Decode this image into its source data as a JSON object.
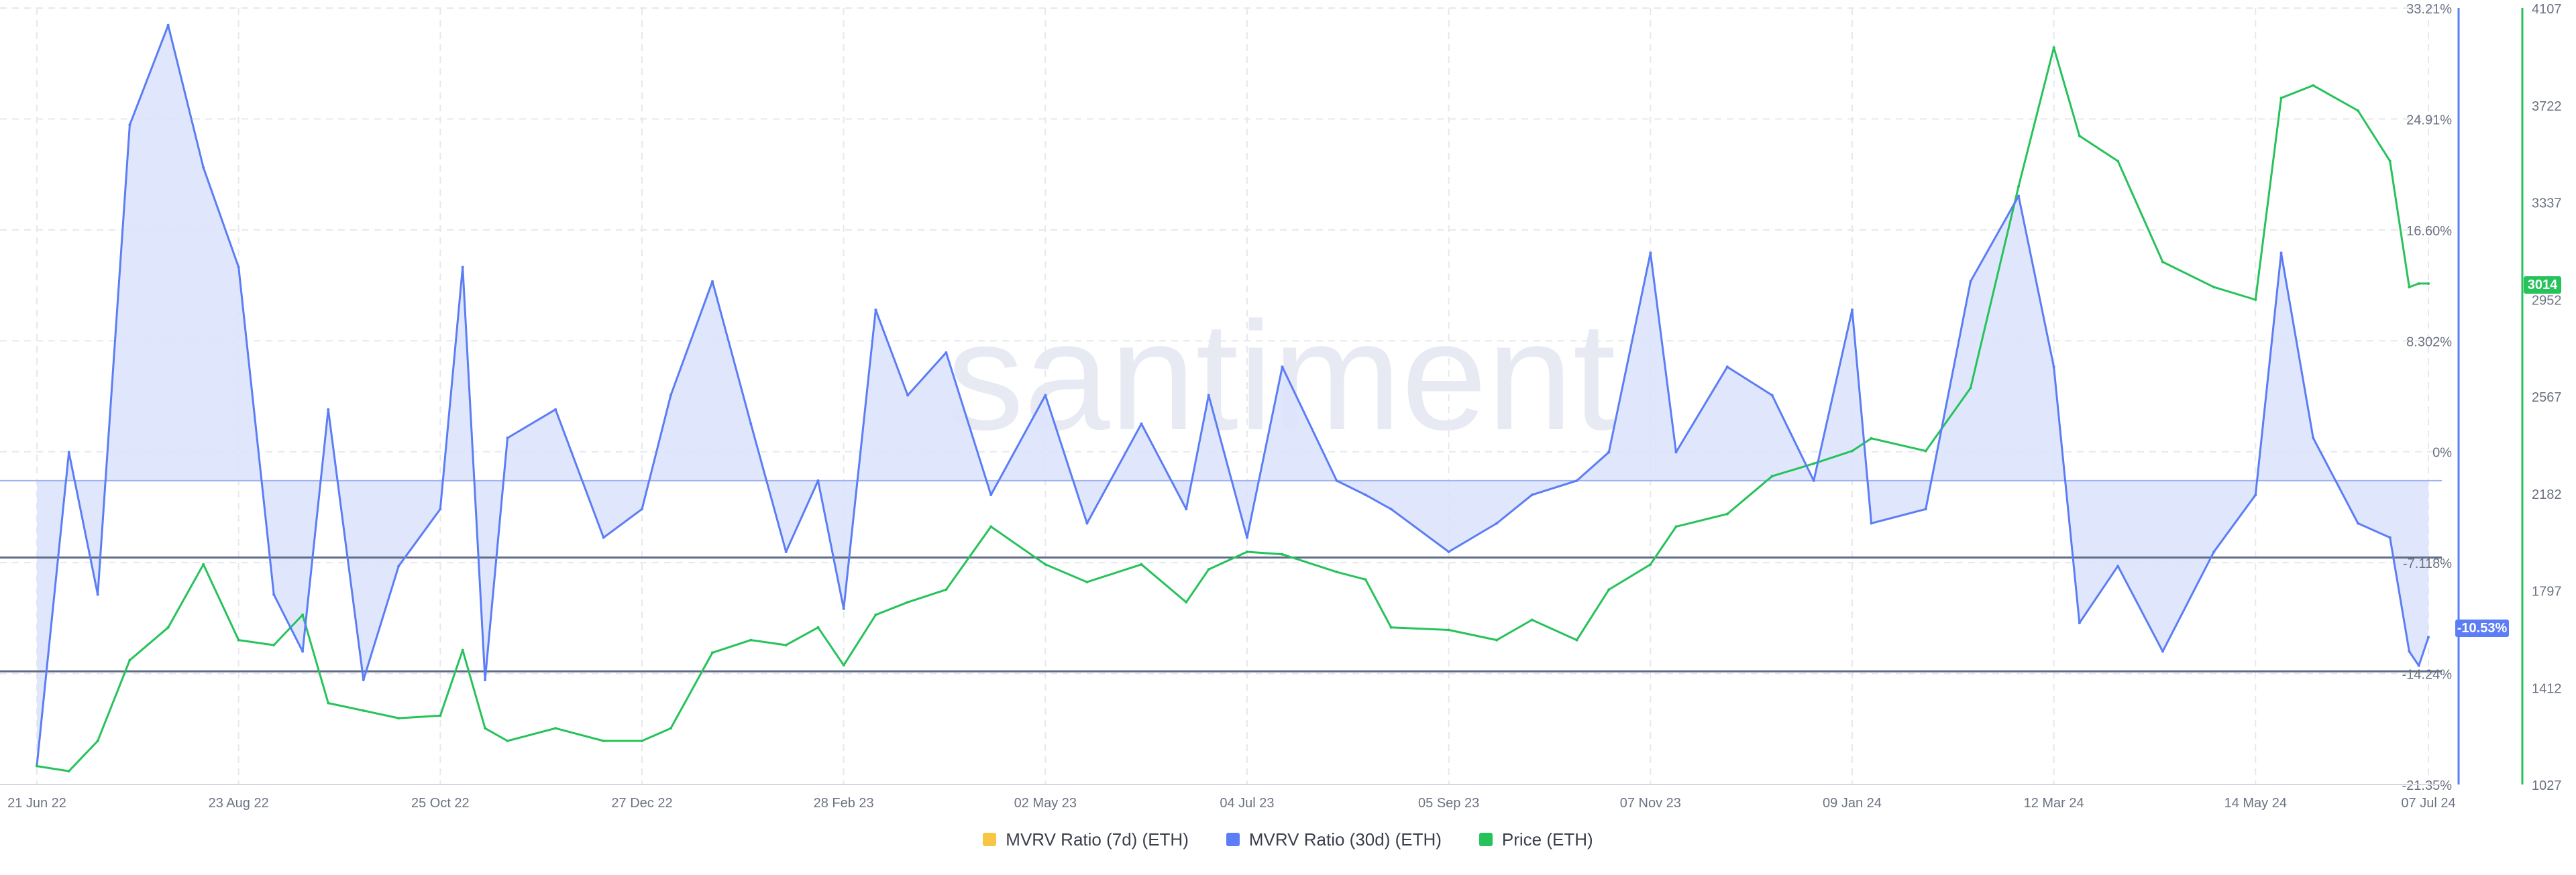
{
  "watermark": "santiment",
  "legend": [
    {
      "label": "MVRV Ratio (7d) (ETH)",
      "color": "#f7c744"
    },
    {
      "label": "MVRV Ratio (30d) (ETH)",
      "color": "#5b7df5"
    },
    {
      "label": "Price (ETH)",
      "color": "#26c25a"
    }
  ],
  "badges": {
    "price": "3014",
    "mvrv": "-10.53%"
  },
  "colors": {
    "mvrv": "#5b7df5",
    "mvrv_fill": "#dbe3fb",
    "price": "#26c25a",
    "grid": "#e6e8ee",
    "hline": "#5f6c88"
  },
  "chart_data": {
    "type": "line",
    "x_ticks": [
      "21 Jun 22",
      "23 Aug 22",
      "25 Oct 22",
      "27 Dec 22",
      "28 Feb 23",
      "02 May 23",
      "04 Jul 23",
      "05 Sep 23",
      "07 Nov 23",
      "09 Jan 24",
      "12 Mar 24",
      "14 May 24",
      "07 Jul 24"
    ],
    "y_left_ticks": [
      "33.21%",
      "24.91%",
      "16.60%",
      "8.302%",
      "0%",
      "-7.118%",
      "-14.24%",
      "-21.35%"
    ],
    "y_left_range": [
      -21.35,
      33.21
    ],
    "y_right_ticks": [
      "4107",
      "3722",
      "3337",
      "2952",
      "2567",
      "2182",
      "1797",
      "1412",
      "1027"
    ],
    "y_right_range": [
      1027,
      4107
    ],
    "horizontal_lines": [
      0,
      -5.4,
      -13.4
    ],
    "series": [
      {
        "name": "MVRV Ratio (30d) (ETH)",
        "axis": "left",
        "x": [
          "21 Jun 22",
          "01 Jul 22",
          "10 Jul 22",
          "20 Jul 22",
          "01 Aug 22",
          "12 Aug 22",
          "23 Aug 22",
          "03 Sep 22",
          "12 Sep 22",
          "20 Sep 22",
          "01 Oct 22",
          "12 Oct 22",
          "25 Oct 22",
          "01 Nov 22",
          "08 Nov 22",
          "15 Nov 22",
          "30 Nov 22",
          "15 Dec 22",
          "27 Dec 22",
          "05 Jan 23",
          "18 Jan 23",
          "30 Jan 23",
          "10 Feb 23",
          "20 Feb 23",
          "28 Feb 23",
          "10 Mar 23",
          "20 Mar 23",
          "01 Apr 23",
          "15 Apr 23",
          "02 May 23",
          "15 May 23",
          "01 Jun 23",
          "15 Jun 23",
          "22 Jun 23",
          "04 Jul 23",
          "15 Jul 23",
          "01 Aug 23",
          "10 Aug 23",
          "18 Aug 23",
          "05 Sep 23",
          "20 Sep 23",
          "01 Oct 23",
          "15 Oct 23",
          "25 Oct 23",
          "07 Nov 23",
          "15 Nov 23",
          "01 Dec 23",
          "15 Dec 23",
          "28 Dec 23",
          "09 Jan 24",
          "15 Jan 24",
          "01 Feb 24",
          "15 Feb 24",
          "01 Mar 24",
          "12 Mar 24",
          "20 Mar 24",
          "01 Apr 24",
          "15 Apr 24",
          "01 May 24",
          "14 May 24",
          "22 May 24",
          "01 Jun 24",
          "15 Jun 24",
          "25 Jun 24",
          "01 Jul 24",
          "04 Jul 24",
          "07 Jul 24"
        ],
        "values": [
          -20,
          2,
          -8,
          25,
          32,
          22,
          15,
          -8,
          -12,
          5,
          -14,
          -6,
          -2,
          15,
          -14,
          3,
          5,
          -4,
          -2,
          6,
          14,
          4,
          -5,
          0,
          -9,
          12,
          6,
          9,
          -1,
          6,
          -3,
          4,
          -2,
          6,
          -4,
          8,
          0,
          -1,
          -2,
          -5,
          -3,
          -1,
          0,
          2,
          16,
          2,
          8,
          6,
          0,
          12,
          -3,
          -2,
          14,
          20,
          8,
          -10,
          -6,
          -12,
          -5,
          -1,
          16,
          3,
          -3,
          -4,
          -12,
          -13,
          -11
        ]
      },
      {
        "name": "Price (ETH)",
        "axis": "right",
        "x": [
          "21 Jun 22",
          "01 Jul 22",
          "10 Jul 22",
          "20 Jul 22",
          "01 Aug 22",
          "12 Aug 22",
          "23 Aug 22",
          "03 Sep 22",
          "12 Sep 22",
          "20 Sep 22",
          "01 Oct 22",
          "12 Oct 22",
          "25 Oct 22",
          "01 Nov 22",
          "08 Nov 22",
          "15 Nov 22",
          "30 Nov 22",
          "15 Dec 22",
          "27 Dec 22",
          "05 Jan 23",
          "18 Jan 23",
          "30 Jan 23",
          "10 Feb 23",
          "20 Feb 23",
          "28 Feb 23",
          "10 Mar 23",
          "20 Mar 23",
          "01 Apr 23",
          "15 Apr 23",
          "02 May 23",
          "15 May 23",
          "01 Jun 23",
          "15 Jun 23",
          "22 Jun 23",
          "04 Jul 23",
          "15 Jul 23",
          "01 Aug 23",
          "10 Aug 23",
          "18 Aug 23",
          "05 Sep 23",
          "20 Sep 23",
          "01 Oct 23",
          "15 Oct 23",
          "25 Oct 23",
          "07 Nov 23",
          "15 Nov 23",
          "01 Dec 23",
          "15 Dec 23",
          "28 Dec 23",
          "09 Jan 24",
          "15 Jan 24",
          "01 Feb 24",
          "15 Feb 24",
          "01 Mar 24",
          "12 Mar 24",
          "20 Mar 24",
          "01 Apr 24",
          "15 Apr 24",
          "01 May 24",
          "14 May 24",
          "22 May 24",
          "01 Jun 24",
          "15 Jun 24",
          "25 Jun 24",
          "01 Jul 24",
          "04 Jul 24",
          "07 Jul 24"
        ],
        "values": [
          1100,
          1080,
          1200,
          1520,
          1650,
          1900,
          1600,
          1580,
          1700,
          1350,
          1320,
          1290,
          1300,
          1560,
          1250,
          1200,
          1250,
          1200,
          1200,
          1250,
          1550,
          1600,
          1580,
          1650,
          1500,
          1700,
          1750,
          1800,
          2050,
          1900,
          1830,
          1900,
          1750,
          1880,
          1950,
          1940,
          1870,
          1840,
          1650,
          1640,
          1600,
          1680,
          1600,
          1800,
          1900,
          2050,
          2100,
          2250,
          2300,
          2350,
          2400,
          2350,
          2600,
          3400,
          3950,
          3600,
          3500,
          3100,
          3000,
          2950,
          3750,
          3800,
          3700,
          3500,
          3000,
          3014,
          3014
        ]
      }
    ]
  }
}
